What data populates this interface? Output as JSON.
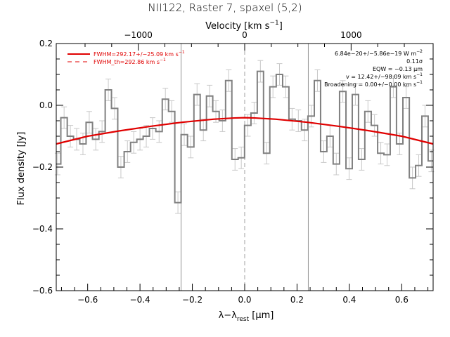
{
  "chart_data": {
    "type": "line",
    "title": "NII122, Raster 7, spaxel (5,2)",
    "xlabel": "λ−λ_rest [μm]",
    "xlabel_main": "λ−λ",
    "xlabel_sub": "rest",
    "xlabel_unit": " [μm]",
    "ylabel": "Flux density [Jy]",
    "top_axis_label": "Velocity [km s⁻¹]",
    "top_axis_label_main": "Velocity [km s",
    "top_axis_label_sup": "−1",
    "top_axis_label_end": "]",
    "xlim": [
      -0.72,
      0.72
    ],
    "ylim": [
      -0.6,
      0.2
    ],
    "x_ticks": [
      -0.6,
      -0.4,
      -0.2,
      0.0,
      0.2,
      0.4,
      0.6
    ],
    "x_tick_labels": [
      "−0.6",
      "−0.4",
      "−0.2",
      "0.0",
      "0.2",
      "0.4",
      "0.6"
    ],
    "y_ticks": [
      0.2,
      0.0,
      -0.2,
      -0.4,
      -0.6
    ],
    "y_tick_labels": [
      "0.2",
      "0.0",
      "−0.2",
      "−0.4",
      "−0.6"
    ],
    "top_ticks_kms": [
      -1000,
      0,
      1000
    ],
    "top_tick_labels": [
      "−1000",
      "0",
      "1000"
    ],
    "grid": false,
    "vertical_lines": [
      -0.243,
      0.0,
      0.243
    ],
    "series": [
      {
        "name": "data",
        "style": "step",
        "color": "#808080",
        "x": [
          -0.715,
          -0.69,
          -0.666,
          -0.642,
          -0.618,
          -0.594,
          -0.569,
          -0.545,
          -0.521,
          -0.497,
          -0.473,
          -0.448,
          -0.424,
          -0.4,
          -0.376,
          -0.352,
          -0.327,
          -0.303,
          -0.279,
          -0.255,
          -0.231,
          -0.206,
          -0.182,
          -0.158,
          -0.134,
          -0.11,
          -0.085,
          -0.061,
          -0.037,
          -0.013,
          0.012,
          0.036,
          0.06,
          0.084,
          0.108,
          0.133,
          0.157,
          0.181,
          0.205,
          0.229,
          0.254,
          0.278,
          0.302,
          0.326,
          0.35,
          0.375,
          0.399,
          0.423,
          0.447,
          0.471,
          0.496,
          0.52,
          0.544,
          0.568,
          0.592,
          0.617,
          0.641,
          0.665,
          0.689,
          0.713
        ],
        "values": [
          -0.19,
          -0.04,
          -0.1,
          -0.11,
          -0.125,
          -0.055,
          -0.11,
          -0.085,
          0.05,
          -0.01,
          -0.2,
          -0.15,
          -0.12,
          -0.11,
          -0.1,
          -0.075,
          -0.085,
          0.02,
          -0.02,
          -0.315,
          -0.095,
          -0.135,
          0.035,
          -0.08,
          0.03,
          -0.02,
          -0.05,
          0.08,
          -0.175,
          -0.17,
          -0.065,
          -0.025,
          0.11,
          -0.155,
          0.06,
          0.1,
          0.06,
          -0.045,
          -0.05,
          -0.08,
          -0.035,
          0.08,
          -0.15,
          -0.1,
          -0.19,
          0.045,
          -0.205,
          0.035,
          -0.175,
          -0.02,
          -0.065,
          -0.155,
          -0.16,
          0.06,
          -0.125,
          0.025,
          -0.235,
          -0.195,
          -0.035,
          -0.18
        ],
        "error": 0.035
      },
      {
        "name": "fit",
        "color": "#e00000",
        "x": [
          -0.72,
          -0.6,
          -0.48,
          -0.36,
          -0.24,
          -0.12,
          -0.04,
          0.0,
          0.04,
          0.12,
          0.24,
          0.36,
          0.48,
          0.6,
          0.72
        ],
        "values": [
          -0.125,
          -0.1,
          -0.083,
          -0.068,
          -0.055,
          -0.045,
          -0.041,
          -0.04,
          -0.041,
          -0.045,
          -0.055,
          -0.068,
          -0.083,
          -0.1,
          -0.125
        ]
      }
    ],
    "legend": {
      "placement": "top-left",
      "entries": [
        {
          "label": "FWHM=292.17+/−25.09 km s⁻¹",
          "main": "FWHM=292.17+/−25.09 km s",
          "sup": "−1",
          "color": "#e00000",
          "style": "solid"
        },
        {
          "label": "FWHM_th=292.86 km s⁻¹",
          "main": "FWHM_th=292.86 km s",
          "sup": "−1",
          "color": "#e00000",
          "style": "dashed"
        }
      ]
    },
    "annotations": [
      {
        "main": "6.84e−20+/−5.86e−19 W m",
        "sup": "−2"
      },
      {
        "main": "0.11σ",
        "sup": ""
      },
      {
        "main": "EQW = −0.13 μm",
        "sup": ""
      },
      {
        "main": "v = 12.42+/−98.09 km s",
        "sup": "−1"
      },
      {
        "main": "Broadening = 0.00+/−0.00 km s",
        "sup": "−1"
      }
    ],
    "annotation_placement": "top-right"
  }
}
